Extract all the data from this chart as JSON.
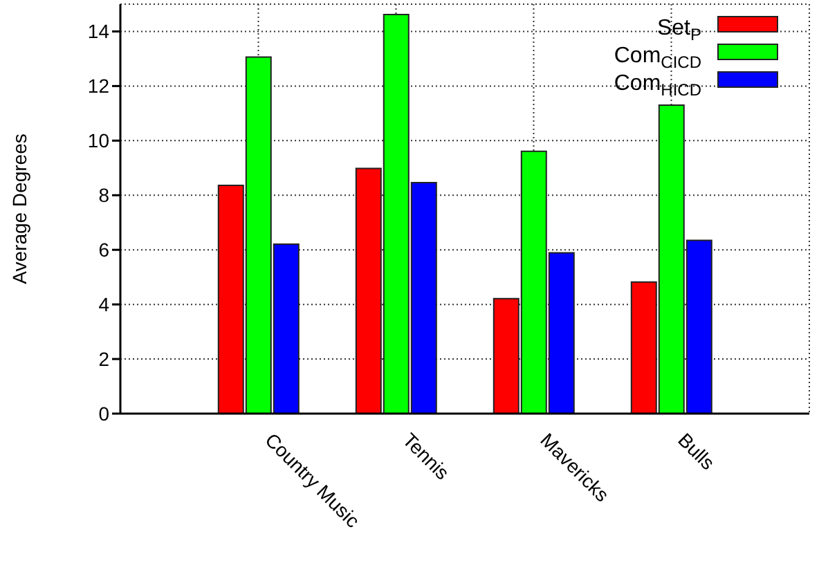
{
  "chart_data": {
    "type": "bar",
    "ylabel": "Average Degrees",
    "categories": [
      "Country Music",
      "Tennis",
      "Mavericks",
      "Bulls"
    ],
    "series": [
      {
        "name": "Set$_{P}$",
        "color": "#ff0000",
        "values": [
          8.36,
          8.98,
          4.21,
          4.82
        ]
      },
      {
        "name": "Com$_{CICD}$",
        "color": "#00ff00",
        "values": [
          13.06,
          14.62,
          9.61,
          11.3
        ]
      },
      {
        "name": "Com$_{HICD}$",
        "color": "#0000ff",
        "values": [
          6.21,
          8.46,
          5.89,
          6.35
        ]
      }
    ],
    "ylim": [
      0,
      15
    ],
    "yticks": [
      0,
      2,
      4,
      6,
      8,
      10,
      12,
      14
    ],
    "grid": true,
    "legend": "top right"
  }
}
